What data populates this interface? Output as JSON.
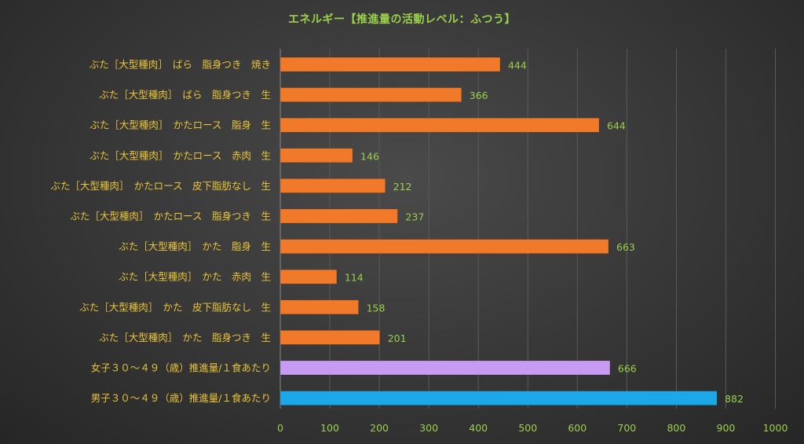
{
  "chart_data": {
    "type": "bar",
    "orientation": "horizontal",
    "title": "エネルギー【推進量の活動レベル：ふつう】",
    "categories": [
      "ぶた［大型種肉］　ばら　脂身つき　焼き",
      "ぶた［大型種肉］　ばら　脂身つき　生",
      "ぶた［大型種肉］　かたロース　脂身　生",
      "ぶた［大型種肉］　かたロース　赤肉　生",
      "ぶた［大型種肉］　かたロース　皮下脂肪なし　生",
      "ぶた［大型種肉］　かたロース　脂身つき　生",
      "ぶた［大型種肉］　かた　脂身　生",
      "ぶた［大型種肉］　かた　赤肉　生",
      "ぶた［大型種肉］　かた　皮下脂肪なし　生",
      "ぶた［大型種肉］　かた　脂身つき　生",
      "女子３０～４９（歳）推進量/１食あたり",
      "男子３０～４９（歳）推進量/１食あたり"
    ],
    "values": [
      444,
      366,
      644,
      146,
      212,
      237,
      663,
      114,
      158,
      201,
      666,
      882
    ],
    "bar_colors": [
      "#f07a2a",
      "#f07a2a",
      "#f07a2a",
      "#f07a2a",
      "#f07a2a",
      "#f07a2a",
      "#f07a2a",
      "#f07a2a",
      "#f07a2a",
      "#f07a2a",
      "#c79bf2",
      "#1ca8e8"
    ],
    "xlim": [
      0,
      1000
    ],
    "xticks": [
      0,
      100,
      200,
      300,
      400,
      500,
      600,
      700,
      800,
      900,
      1000
    ],
    "grid": true,
    "legend": "none"
  }
}
